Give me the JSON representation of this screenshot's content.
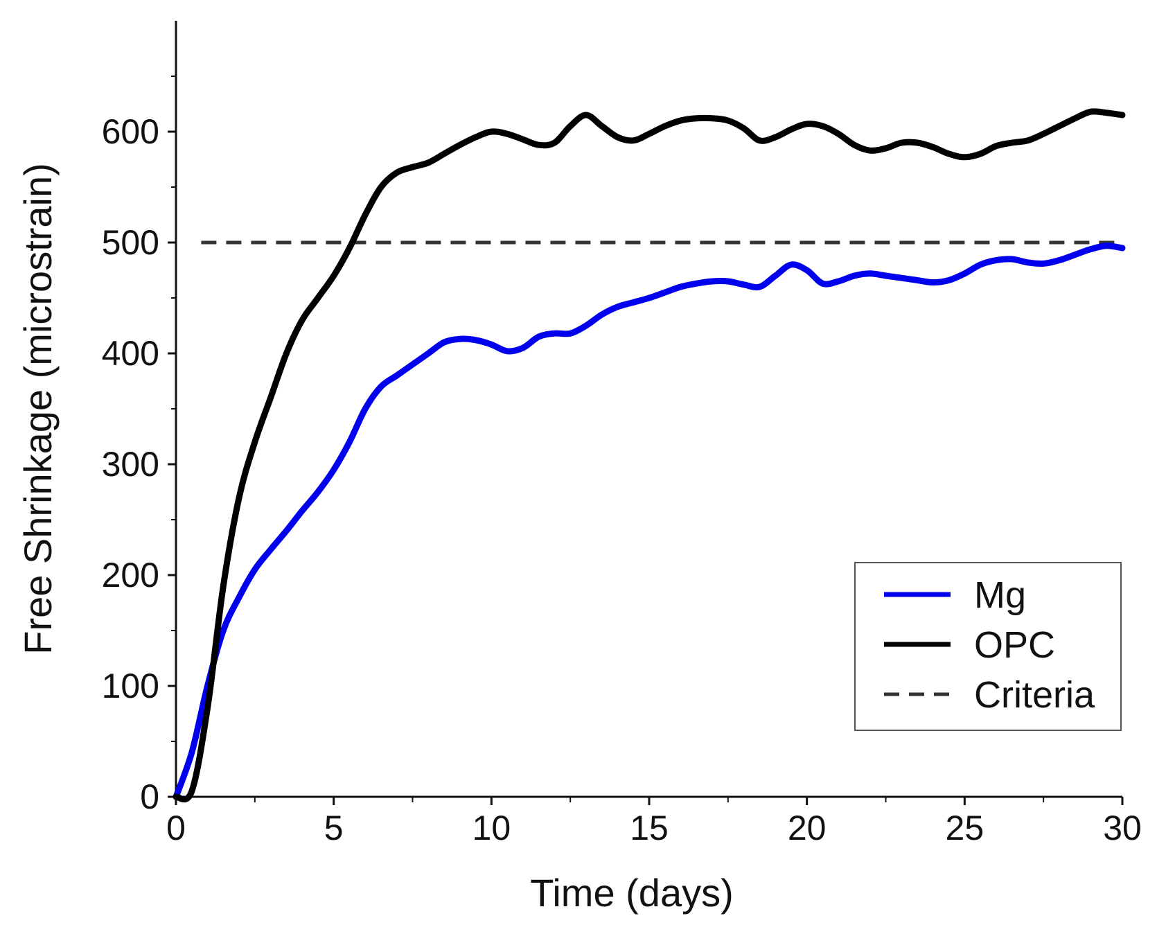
{
  "chart_data": {
    "type": "line",
    "title": "",
    "xlabel": "Time (days)",
    "ylabel": "Free Shrinkage (microstrain)",
    "xlim": [
      0,
      30
    ],
    "ylim": [
      0,
      700
    ],
    "xticks": [
      0,
      5,
      10,
      15,
      20,
      25,
      30
    ],
    "xtick_labels": [
      "0",
      "5",
      "10",
      "15",
      "20",
      "25",
      "30"
    ],
    "yticks": [
      0,
      100,
      200,
      300,
      400,
      500,
      600
    ],
    "ytick_labels": [
      "0",
      "100",
      "200",
      "300",
      "400",
      "500",
      "600"
    ],
    "grid": false,
    "legend_position": "bottom-right",
    "series": [
      {
        "name": "Mg",
        "color": "#0000ee",
        "style": "solid",
        "x": [
          0,
          0.5,
          1,
          1.5,
          2,
          2.5,
          3,
          3.5,
          4,
          4.5,
          5,
          5.5,
          6,
          6.5,
          7,
          7.5,
          8,
          8.5,
          9,
          9.5,
          10,
          10.5,
          11,
          11.5,
          12,
          12.5,
          13,
          13.5,
          14,
          14.5,
          15,
          15.5,
          16,
          16.5,
          17,
          17.5,
          18,
          18.5,
          19,
          19.5,
          20,
          20.5,
          21,
          21.5,
          22,
          22.5,
          23,
          23.5,
          24,
          24.5,
          25,
          25.5,
          26,
          26.5,
          27,
          27.5,
          28,
          28.5,
          29,
          29.5,
          30
        ],
        "values": [
          0,
          40,
          100,
          150,
          180,
          205,
          223,
          240,
          258,
          275,
          295,
          320,
          350,
          370,
          380,
          390,
          400,
          410,
          413,
          412,
          408,
          402,
          405,
          415,
          418,
          418,
          425,
          435,
          442,
          446,
          450,
          455,
          460,
          463,
          465,
          465,
          462,
          460,
          470,
          480,
          475,
          463,
          465,
          470,
          472,
          470,
          468,
          466,
          464,
          466,
          472,
          480,
          484,
          485,
          482,
          481,
          484,
          489,
          494,
          497,
          495
        ]
      },
      {
        "name": "OPC",
        "color": "#000000",
        "style": "solid",
        "x": [
          0,
          0.5,
          1,
          1.5,
          2,
          2.5,
          3,
          3.5,
          4,
          4.5,
          5,
          5.5,
          6,
          6.5,
          7,
          7.5,
          8,
          8.5,
          9,
          9.5,
          10,
          10.5,
          11,
          11.5,
          12,
          12.5,
          13,
          13.5,
          14,
          14.5,
          15,
          15.5,
          16,
          16.5,
          17,
          17.5,
          18,
          18.5,
          19,
          19.5,
          20,
          20.5,
          21,
          21.5,
          22,
          22.5,
          23,
          23.5,
          24,
          24.5,
          25,
          25.5,
          26,
          26.5,
          27,
          27.5,
          28,
          28.5,
          29,
          29.5,
          30
        ],
        "values": [
          0,
          5,
          80,
          190,
          270,
          320,
          360,
          400,
          430,
          450,
          470,
          495,
          525,
          550,
          563,
          568,
          572,
          580,
          588,
          595,
          600,
          598,
          593,
          588,
          590,
          605,
          615,
          605,
          595,
          592,
          598,
          605,
          610,
          612,
          612,
          610,
          603,
          592,
          595,
          602,
          607,
          605,
          598,
          588,
          583,
          585,
          590,
          590,
          586,
          580,
          577,
          580,
          587,
          590,
          592,
          598,
          605,
          612,
          618,
          617,
          615
        ]
      },
      {
        "name": "Criteria",
        "color": "#333333",
        "style": "dashed",
        "x": [
          0.8,
          30
        ],
        "values": [
          500,
          500
        ]
      }
    ]
  }
}
